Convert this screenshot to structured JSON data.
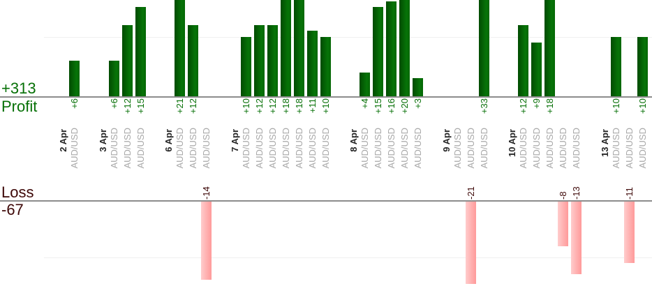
{
  "chart_data": {
    "type": "bar",
    "description": "Daily trade profit/loss bar chart, values in pips per trade, grouped by date",
    "symbol": "AUD/USD",
    "gridline_step": 10,
    "profit": {
      "total": "+313",
      "axis_label": "Profit"
    },
    "loss": {
      "total": "-67",
      "axis_label": "Loss"
    },
    "groups": [
      {
        "date": "2 Apr",
        "trades": [
          {
            "value": 6,
            "label": "+6"
          }
        ]
      },
      {
        "date": "3 Apr",
        "trades": [
          {
            "value": 6,
            "label": "+6"
          },
          {
            "value": 12,
            "label": "+12"
          },
          {
            "value": 15,
            "label": "+15"
          }
        ]
      },
      {
        "date": "6 Apr",
        "trades": [
          {
            "value": 21,
            "label": "+21"
          },
          {
            "value": 12,
            "label": "+12"
          },
          {
            "value": -14,
            "label": "-14"
          }
        ]
      },
      {
        "date": "7 Apr",
        "trades": [
          {
            "value": 10,
            "label": "+10"
          },
          {
            "value": 12,
            "label": "+12"
          },
          {
            "value": 12,
            "label": "+12"
          },
          {
            "value": 18,
            "label": "+18"
          },
          {
            "value": 18,
            "label": "+18"
          },
          {
            "value": 11,
            "label": "+11"
          },
          {
            "value": 10,
            "label": "+10"
          }
        ]
      },
      {
        "date": "8 Apr",
        "trades": [
          {
            "value": 4,
            "label": "+4"
          },
          {
            "value": 15,
            "label": "+15"
          },
          {
            "value": 16,
            "label": "+16"
          },
          {
            "value": 20,
            "label": "+20"
          },
          {
            "value": 3,
            "label": "+3"
          }
        ]
      },
      {
        "date": "9 Apr",
        "trades": [
          {
            "value": 0,
            "label": ""
          },
          {
            "value": -21,
            "label": "-21"
          },
          {
            "value": 33,
            "label": "+33"
          }
        ]
      },
      {
        "date": "10 Apr",
        "trades": [
          {
            "value": 12,
            "label": "+12"
          },
          {
            "value": 9,
            "label": "+9"
          },
          {
            "value": 18,
            "label": "+18"
          },
          {
            "value": -8,
            "label": "-8"
          },
          {
            "value": -13,
            "label": "-13"
          }
        ]
      },
      {
        "date": "13 Apr",
        "trades": [
          {
            "value": 10,
            "label": "+10"
          },
          {
            "value": -11,
            "label": "-11"
          },
          {
            "value": 10,
            "label": "+10"
          }
        ]
      }
    ],
    "colors": {
      "profit_bar_dark": "#014b01",
      "profit_bar_light": "#077408",
      "profit_bar_edge": "#056605",
      "loss_bar_light": "#ffcccc",
      "loss_bar_mid": "#ffb0b0",
      "loss_bar_dark": "#ff9a9a",
      "profit_text": "#067006",
      "loss_text": "#3d0707",
      "date_text": "#262626",
      "symbol_text": "#a8a8a8",
      "baseline": "#8c8c8c",
      "gridline": "#f0f0f0"
    }
  }
}
